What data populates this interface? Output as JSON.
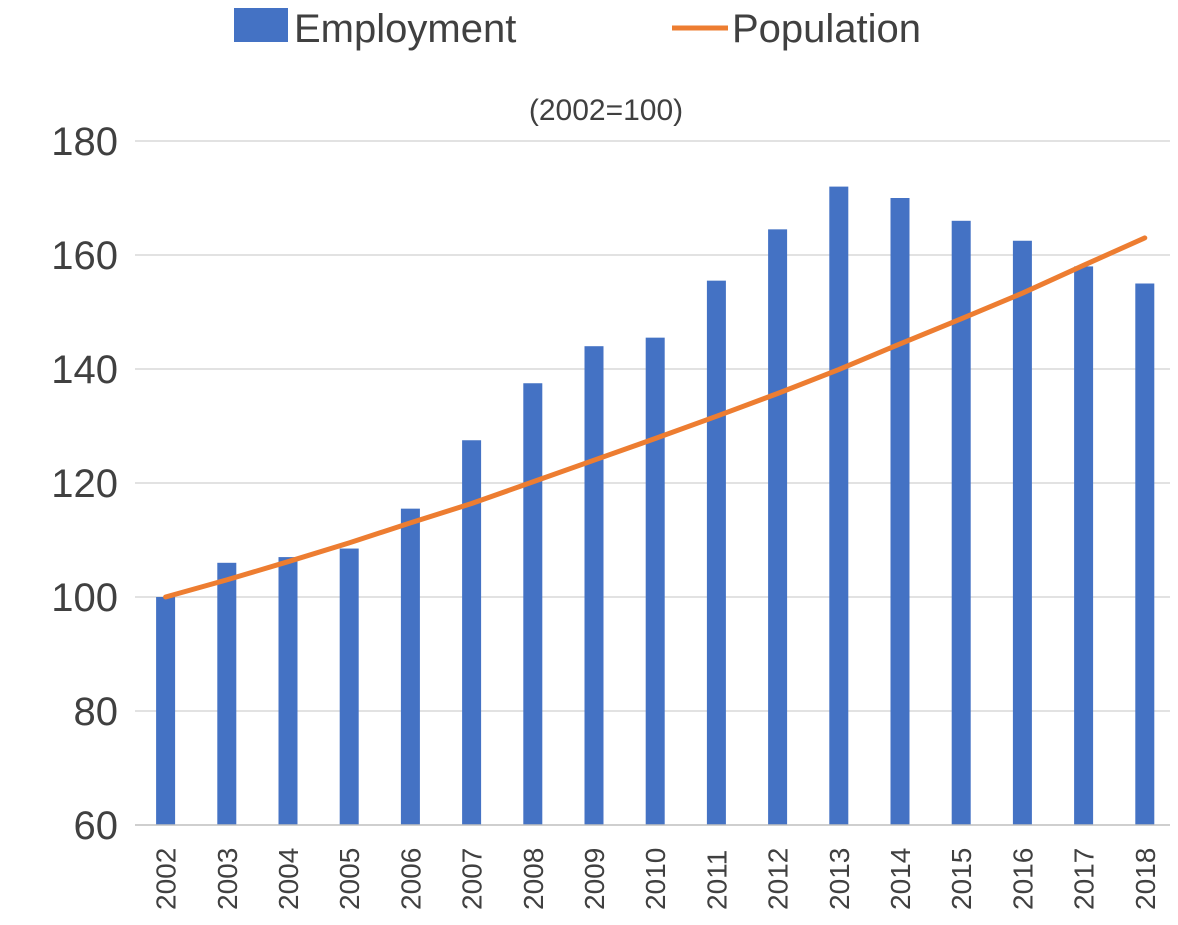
{
  "chart_data": {
    "type": "bar",
    "subtitle": "(2002=100)",
    "categories": [
      "2002",
      "2003",
      "2004",
      "2005",
      "2006",
      "2007",
      "2008",
      "2009",
      "2010",
      "2011",
      "2012",
      "2013",
      "2014",
      "2015",
      "2016",
      "2017",
      "2018"
    ],
    "series": [
      {
        "name": "Employment",
        "type": "bar",
        "color": "#4472c4",
        "values": [
          100,
          106,
          107,
          108.5,
          115.5,
          127.5,
          137.5,
          144,
          145.5,
          155.5,
          164.5,
          172,
          170,
          166,
          162.5,
          158,
          155
        ]
      },
      {
        "name": "Population",
        "type": "line",
        "color": "#ed7d31",
        "values": [
          100,
          103,
          106.2,
          109.5,
          113,
          116.4,
          120.2,
          124,
          127.8,
          131.7,
          135.7,
          139.9,
          144.4,
          148.8,
          153.3,
          158.2,
          163
        ]
      }
    ],
    "yticks": [
      "60",
      "80",
      "100",
      "120",
      "140",
      "160",
      "180"
    ],
    "ylim": [
      60,
      180
    ],
    "grid": true,
    "legend_position": "top"
  }
}
